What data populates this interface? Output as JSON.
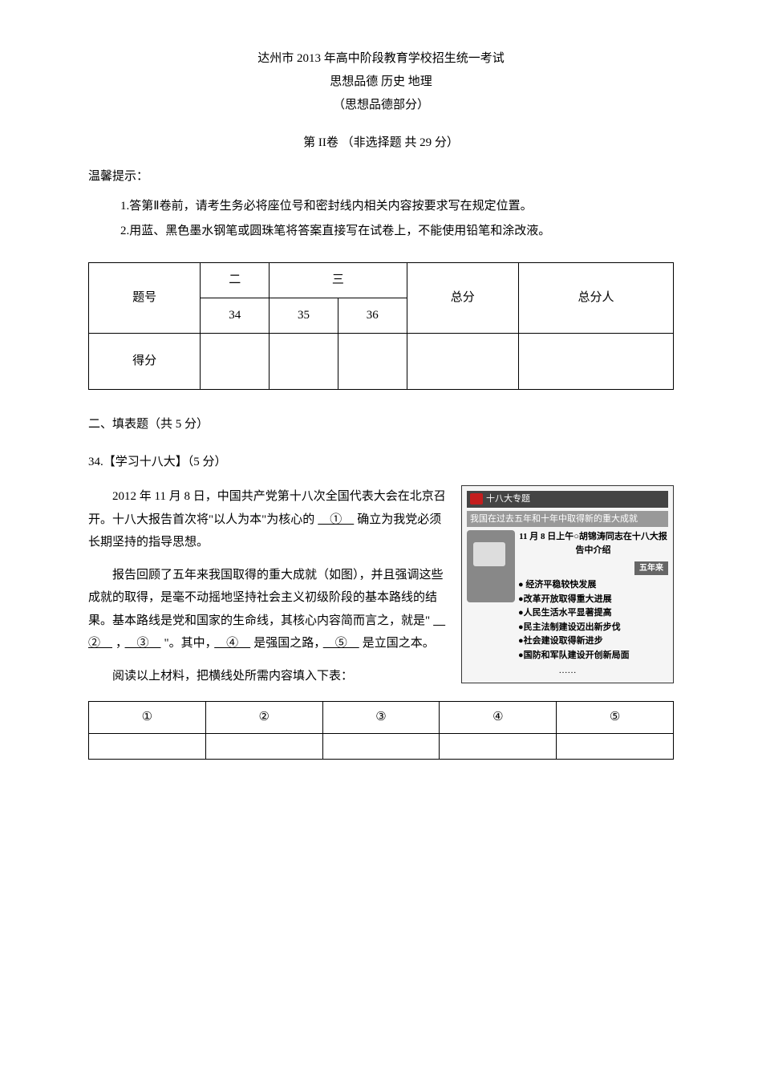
{
  "header": {
    "line1": "达州市 2013 年高中阶段教育学校招生统一考试",
    "line2": "思想品德 历史 地理",
    "line3": "（思想品德部分）",
    "section": "第 II卷 （非选择题  共 29 分）"
  },
  "notice": {
    "label": "温馨提示：",
    "item1": "1.答第Ⅱ卷前，请考生务必将座位号和密封线内相关内容按要求写在规定位置。",
    "item2": "2.用蓝、黑色墨水钢笔或圆珠笔将答案直接写在试卷上，不能使用铅笔和涂改液。"
  },
  "score_table": {
    "col_header1": "题号",
    "col_header2": "二",
    "col_header3": "三",
    "col_total": "总分",
    "col_scorer": "总分人",
    "sub1": "34",
    "sub2": "35",
    "sub3": "36",
    "row_score": "得分"
  },
  "section2": {
    "heading": "二、填表题（共 5 分）",
    "question_title": "34.【学习十八大】（5 分）",
    "para1_pre": "2012 年 11 月 8 日，中国共产党第十八次全国代表大会在北京召开。十八大报告首次将\"以人为本\"为核心的",
    "blank1": "　①　",
    "para1_post": "确立为我党必须长期坚持的指导思想。",
    "para2_pre": "报告回顾了五年来我国取得的重大成就（如图），并且强调这些成就的取得，是毫不动摇地坚持社会主义初级阶段的基本路线的结果。基本路线是党和国家的生命线，其核心内容简而言之，就是\"",
    "blank2": "　②　",
    "comma": "，",
    "blank3": "　③　",
    "para2_mid": "\"。其中，",
    "blank4": "　④　",
    "para2_mid2": "是强国之路，",
    "blank5": "　⑤　",
    "para2_post": "是立国之本。",
    "read_instruction": "阅读以上材料，把横线处所需内容填入下表："
  },
  "image": {
    "badge": "十八大专题",
    "subtitle": "我国在过去五年和十年中取得新的重大成就",
    "date_text": "11 月 8 日上午○胡锦涛同志在十八大报告中介绍",
    "tag_5year": "五年来",
    "bullet1": "● 经济平稳较快发展",
    "bullet2": "●改革开放取得重大进展",
    "bullet3": "●人民生活水平显著提高",
    "bullet4": "●民主法制建设迈出新步伐",
    "bullet5": "●社会建设取得新进步",
    "bullet6": "●国防和军队建设开创新局面",
    "side": "新的重大成就",
    "dots": "……"
  },
  "answer_table": {
    "h1": "①",
    "h2": "②",
    "h3": "③",
    "h4": "④",
    "h5": "⑤"
  }
}
